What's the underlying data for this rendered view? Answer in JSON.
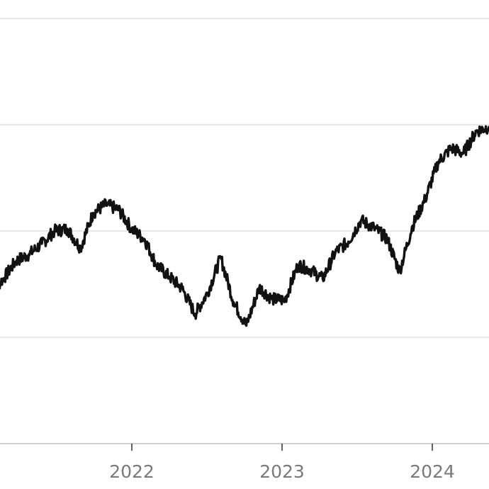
{
  "chart_data": {
    "type": "line",
    "title": "",
    "xlabel": "",
    "ylabel": "",
    "x_ticks": [
      "2022",
      "2023",
      "2024"
    ],
    "grid": true,
    "legend": "none",
    "xlim": [
      "2021-02-01",
      "2024-05-01"
    ],
    "ylim": [
      0,
      4
    ],
    "line_color": "#111111",
    "series": [
      {
        "x": [
          "2021-02-01",
          "2021-03-01",
          "2021-04-01",
          "2021-05-01",
          "2021-06-01",
          "2021-07-01",
          "2021-08-01",
          "2021-09-01",
          "2021-10-01",
          "2021-11-01",
          "2021-12-01",
          "2022-01-01",
          "2022-02-01",
          "2022-03-01",
          "2022-04-01",
          "2022-05-01",
          "2022-06-01",
          "2022-07-01",
          "2022-08-01",
          "2022-09-01",
          "2022-10-01",
          "2022-11-01",
          "2022-12-01",
          "2023-01-01",
          "2023-02-01",
          "2023-03-01",
          "2023-04-01",
          "2023-05-01",
          "2023-06-01",
          "2023-07-01",
          "2023-08-01",
          "2023-09-01",
          "2023-10-01",
          "2023-11-01",
          "2023-12-01",
          "2024-01-01",
          "2024-02-01",
          "2024-03-01",
          "2024-04-01",
          "2024-05-01"
        ],
        "values": [
          1.42,
          1.55,
          1.72,
          1.78,
          1.88,
          2.0,
          2.02,
          1.84,
          2.17,
          2.25,
          2.2,
          2.02,
          1.92,
          1.68,
          1.57,
          1.46,
          1.22,
          1.42,
          1.75,
          1.33,
          1.11,
          1.47,
          1.36,
          1.35,
          1.68,
          1.64,
          1.55,
          1.8,
          1.9,
          2.1,
          2.03,
          1.93,
          1.62,
          2.05,
          2.3,
          2.65,
          2.78,
          2.73,
          2.94,
          2.98
        ]
      }
    ]
  }
}
